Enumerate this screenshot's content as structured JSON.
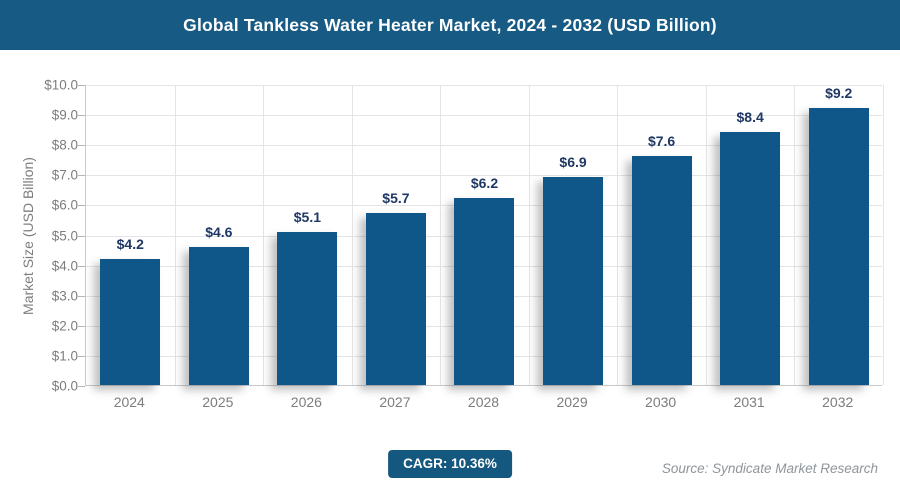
{
  "header": {
    "title": "Global Tankless Water Heater Market, 2024 - 2032 (USD Billion)"
  },
  "chart_data": {
    "type": "bar",
    "title": "Global Tankless Water Heater Market, 2024 - 2032 (USD Billion)",
    "categories": [
      "2024",
      "2025",
      "2026",
      "2027",
      "2028",
      "2029",
      "2030",
      "2031",
      "2032"
    ],
    "values": [
      4.2,
      4.6,
      5.1,
      5.7,
      6.2,
      6.9,
      7.6,
      8.4,
      9.2
    ],
    "data_labels": [
      "$4.2",
      "$4.6",
      "$5.1",
      "$5.7",
      "$6.2",
      "$6.9",
      "$7.6",
      "$8.4",
      "$9.2"
    ],
    "xlabel": "",
    "ylabel": "Market Size (USD Billion)",
    "ylim": [
      0,
      10
    ],
    "ytick_step": 1,
    "ytick_labels": [
      "$0.0",
      "$1.0",
      "$2.0",
      "$3.0",
      "$4.0",
      "$5.0",
      "$6.0",
      "$7.0",
      "$8.0",
      "$9.0",
      "$10.0"
    ],
    "grid": true,
    "legend": false
  },
  "footer": {
    "cagr_label": "CAGR: 10.36%",
    "source": "Source: Syndicate Market Research"
  },
  "colors": {
    "header_bg": "#175B84",
    "bar": "#0F5788",
    "badge_bg": "#15587F",
    "value_label": "#1F3864",
    "axis_text": "#7D7D7D",
    "grid_line": "#E4E4E4",
    "axis_line": "#C9C9C9",
    "tick": "#B5B5B5",
    "source_text": "#8E959B",
    "title_text": "#FFFFFF"
  }
}
